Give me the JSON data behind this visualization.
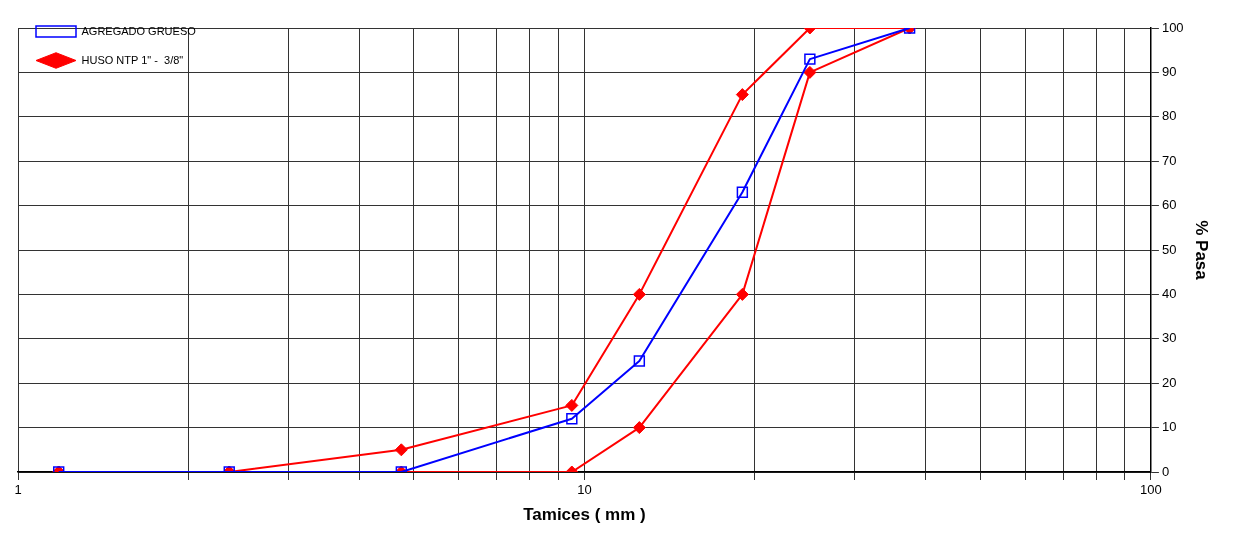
{
  "chart_data": {
    "type": "line",
    "xlabel": "Tamices ( mm )",
    "ylabel": "% Pasa",
    "log": "x",
    "grid": true,
    "legend": "top left",
    "xlim": [
      1,
      100
    ],
    "ylim": [
      0,
      100
    ],
    "xticks": [
      1,
      {
        "value": 2,
        "label": null
      },
      {
        "value": 3,
        "label": null
      },
      {
        "value": 4,
        "label": null
      },
      {
        "value": 5,
        "label": null
      },
      {
        "value": 6,
        "label": null
      },
      {
        "value": 7,
        "label": null
      },
      {
        "value": 8,
        "label": null
      },
      {
        "value": 9,
        "label": null
      },
      10,
      {
        "value": 20,
        "label": null
      },
      {
        "value": 30,
        "label": null
      },
      {
        "value": 40,
        "label": null
      },
      {
        "value": 50,
        "label": null
      },
      {
        "value": 60,
        "label": null
      },
      {
        "value": 70,
        "label": null
      },
      {
        "value": 80,
        "label": null
      },
      {
        "value": 90,
        "label": null
      },
      100
    ],
    "yticks": [
      0,
      10,
      20,
      30,
      40,
      50,
      60,
      70,
      80,
      90,
      100
    ],
    "x": [
      1.18,
      2.36,
      4.75,
      9.5,
      12.5,
      19,
      25,
      37.5
    ],
    "series": [
      {
        "name": "AGREGADO GRUESO",
        "color": "#0000ff",
        "marker": "square",
        "values": [
          0,
          0,
          0,
          12,
          25,
          63,
          93,
          100
        ]
      },
      {
        "name": "HUSO NTP 1\" -  3/8\"",
        "color": "#ff0000",
        "marker": "diamond",
        "values": [
          0,
          0,
          5,
          15,
          40,
          85,
          100,
          100
        ]
      },
      {
        "color": "#ff0000",
        "marker": "diamond",
        "values": [
          0,
          0,
          0,
          0,
          10,
          40,
          90,
          100
        ]
      }
    ]
  }
}
